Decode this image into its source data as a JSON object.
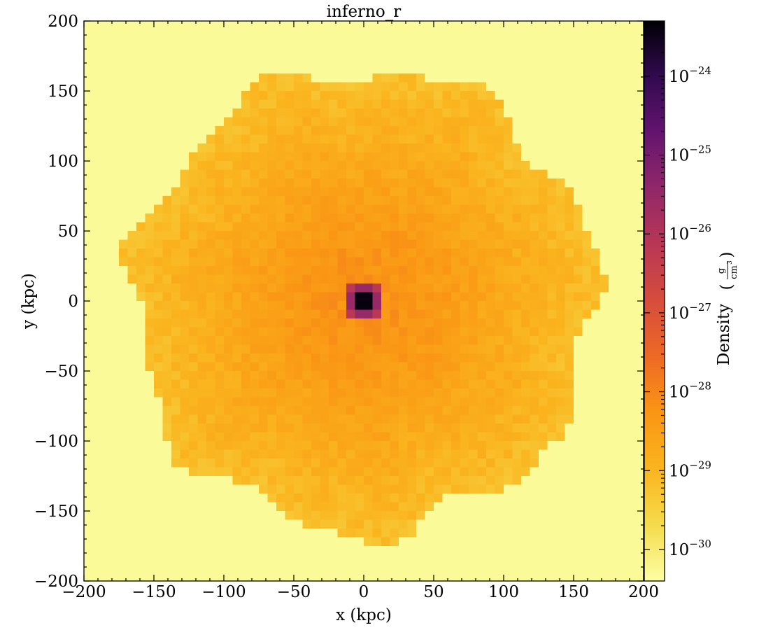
{
  "chart_data": {
    "type": "heatmap",
    "title": "inferno_r",
    "xlabel": "x  (kpc)",
    "ylabel": "y  (kpc)",
    "xlim": [
      -200,
      200
    ],
    "ylim": [
      -200,
      200
    ],
    "xticks": [
      -200,
      -150,
      -100,
      -50,
      0,
      50,
      100,
      150,
      200
    ],
    "yticks": [
      -200,
      -150,
      -100,
      -50,
      0,
      50,
      100,
      150,
      200
    ],
    "xtick_labels": [
      "−200",
      "−150",
      "−100",
      "−50",
      "0",
      "50",
      "100",
      "150",
      "200"
    ],
    "ytick_labels": [
      "−200",
      "−150",
      "−100",
      "−50",
      "0",
      "50",
      "100",
      "150",
      "200"
    ],
    "colormap": "inferno_r",
    "colorbar": {
      "label": "Density",
      "unit_numerator": "g",
      "unit_denominator": "cm",
      "unit_denominator_power": "3",
      "scale": "log",
      "range": [
        -30.4,
        -23.3
      ],
      "ticks": [
        {
          "exp": -30,
          "base": "10",
          "power": "−30"
        },
        {
          "exp": -29,
          "base": "10",
          "power": "−29"
        },
        {
          "exp": -28,
          "base": "10",
          "power": "−28"
        },
        {
          "exp": -27,
          "base": "10",
          "power": "−27"
        },
        {
          "exp": -26,
          "base": "10",
          "power": "−26"
        },
        {
          "exp": -25,
          "base": "10",
          "power": "−25"
        },
        {
          "exp": -24,
          "base": "10",
          "power": "−24"
        }
      ]
    },
    "field": {
      "grid_size": 64,
      "background_log_density": -30.3,
      "halo_radius_kpc": 165,
      "edge_log_density": -29.2,
      "core_log_density": -23.4,
      "peak_xy": [
        0,
        0
      ]
    }
  }
}
